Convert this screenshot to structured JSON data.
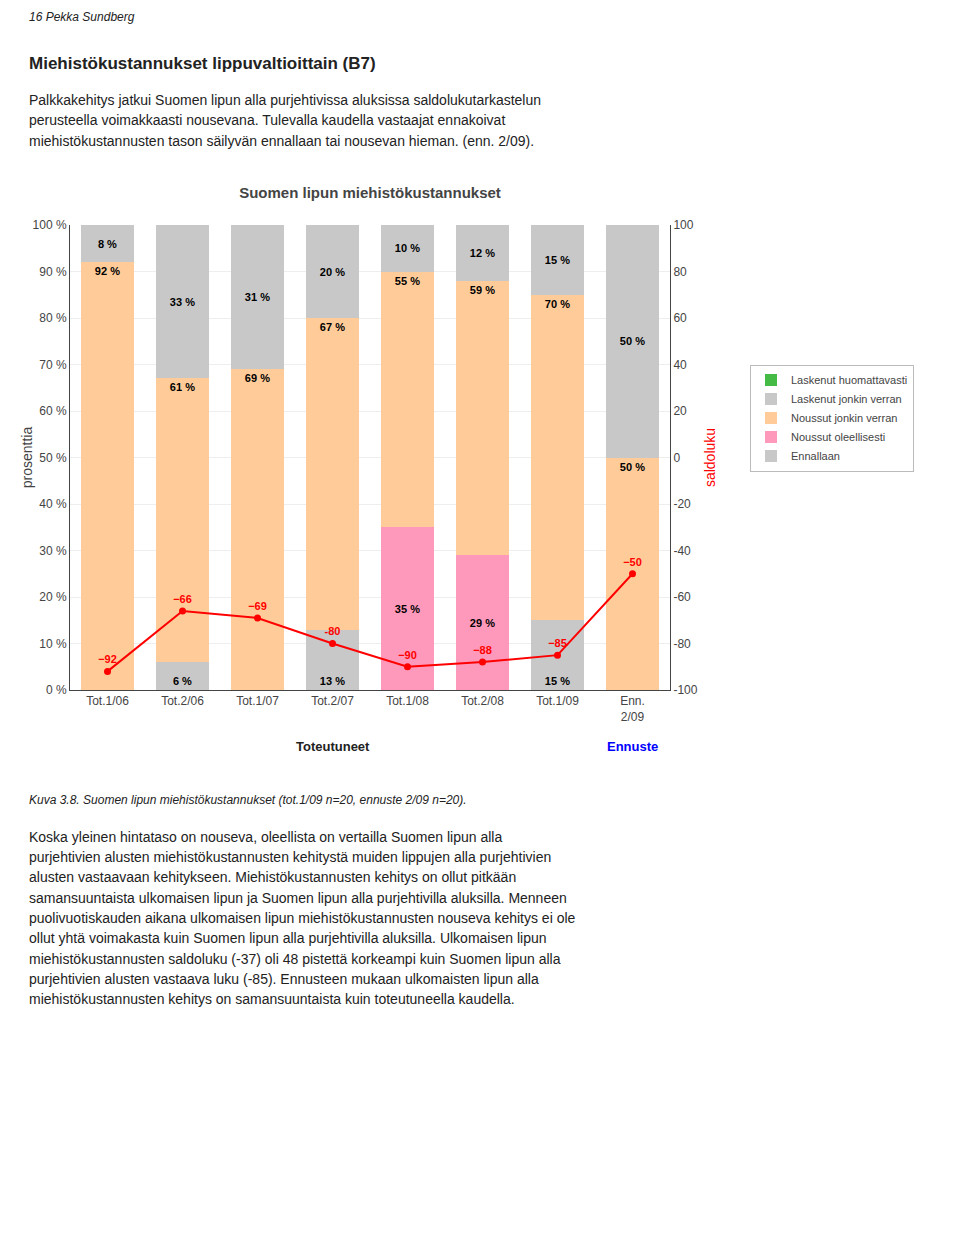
{
  "page": {
    "header": "16    Pekka Sundberg",
    "section_title": "Miehistökustannukset lippuvaltioittain (B7)",
    "body_text": [
      "Palkkakehitys jatkui Suomen lipun alla purjehtivissa aluksissa saldolukutarkastelun\nperusteella voimakkaasti nousevana.  Tulevalla kaudella vastaajat ennakoivat\nmiehistökustannusten tason säilyvän ennallaan tai nousevan hieman. (enn. 2/09).",
      "Koska yleinen hintataso on nouseva, oleellista on vertailla Suomen lipun alla\npurjehtivien alusten miehistökustannusten kehitystä muiden lippujen alla purjehtivien\nalusten vastaavaan kehitykseen.  Miehistökustannusten kehitys on ollut pitkään\nsamansuuntaista ulkomaisen lipun ja Suomen lipun alla purjehtivilla aluksilla.  Menneen\npuolivuotiskauden aikana ulkomaisen lipun miehistökustannusten nouseva kehitys ei ole\nollut yhtä voimakasta kuin Suomen lipun alla purjehtivilla aluksilla.  Ulkomaisen lipun\nmiehistökustannusten saldoluku (-37) oli 48 pistettä korkeampi kuin Suomen lipun alla\npurjehtivien alusten vastaava luku (-85).  Ennusteen mukaan ulkomaisten lipun alla\nmiehistökustannusten kehitys on samansuuntaista kuin toteutuneella kaudella."
    ],
    "caption": "Kuva 3.8.  Suomen lipun miehistökustannukset  (tot.1/09 n=20, ennuste 2/09 n=20)."
  },
  "chart_data": {
    "type": "bar",
    "stacked": true,
    "title": "Suomen lipun miehistökustannukset",
    "categories": [
      "Tot.1/06",
      "Tot.2/06",
      "Tot.1/07",
      "Tot.2/07",
      "Tot.1/08",
      "Tot.2/08",
      "Tot.1/09",
      "Enn.\n2/09"
    ],
    "ylabel": "prosenttia",
    "y2label": "saldoluku",
    "ylim": [
      0,
      100
    ],
    "yticks": [
      {
        "value": 0,
        "label": "0 %"
      },
      {
        "value": 10,
        "label": "10 %"
      },
      {
        "value": 20,
        "label": "20 %"
      },
      {
        "value": 30,
        "label": "30 %"
      },
      {
        "value": 40,
        "label": "40 %"
      },
      {
        "value": 50,
        "label": "50 %"
      },
      {
        "value": 60,
        "label": "60 %"
      },
      {
        "value": 70,
        "label": "70 %"
      },
      {
        "value": 80,
        "label": "80 %"
      },
      {
        "value": 90,
        "label": "90 %"
      },
      {
        "value": 100,
        "label": "100 %"
      }
    ],
    "y2lim": [
      -100,
      100
    ],
    "y2ticks": [
      -100,
      -80,
      -60,
      -40,
      -20,
      0,
      20,
      40,
      60,
      80,
      100
    ],
    "grid": true,
    "legend": "right",
    "annotations": [
      {
        "text": "Toteutuneet",
        "categories": [
          "Tot.1/06",
          "Tot.2/06",
          "Tot.1/07",
          "Tot.2/07",
          "Tot.1/08",
          "Tot.2/08",
          "Tot.1/09"
        ]
      },
      {
        "text": "Ennuste",
        "categories": [
          "Enn.\n2/09"
        ],
        "color": "blue"
      }
    ],
    "series": [
      {
        "name": "Ennallaan",
        "color": "#C8C8C8",
        "values": [
          0,
          6,
          0,
          13,
          0,
          0,
          15,
          0
        ],
        "data_labels": true,
        "value_labels": [
          null,
          "6 %",
          null,
          "13 %",
          null,
          null,
          "15 %",
          null
        ]
      },
      {
        "name": "Noussut oleellisesti",
        "color": "#FF99BB",
        "values": [
          0,
          0,
          0,
          0,
          35,
          29,
          0,
          0
        ],
        "data_labels": true,
        "value_labels": [
          null,
          null,
          null,
          null,
          "35 %",
          "29 %",
          null,
          null
        ]
      },
      {
        "name": "Noussut jonkin verran",
        "color": "#FFCC99",
        "values": [
          92,
          61,
          69,
          67,
          55,
          59,
          70,
          50
        ],
        "data_labels": true,
        "value_labels": [
          "92 %",
          "61 %",
          "69 %",
          "67 %",
          "55 %",
          "59 %",
          "70 %",
          "50 %"
        ]
      },
      {
        "name": "Laskenut jonkin verran",
        "color": "#C8C8C8",
        "values": [
          8,
          33,
          31,
          20,
          10,
          12,
          15,
          50
        ],
        "data_labels": true,
        "value_labels": [
          "8 %",
          "33 %",
          "31 %",
          "20 %",
          "10 %",
          "12 %",
          "15 %",
          "50 %"
        ]
      },
      {
        "name": "Laskenut huomattavasti",
        "color": "#44BB44",
        "values": [
          0,
          0,
          0,
          0,
          0,
          0,
          0,
          0
        ]
      },
      {
        "type": "line",
        "axis": "y2",
        "color": "#FF0000",
        "marker": "circle",
        "data_labels": true,
        "values": [
          -92,
          -66,
          -69,
          -80,
          -90,
          -88,
          -85,
          -50
        ]
      }
    ]
  }
}
